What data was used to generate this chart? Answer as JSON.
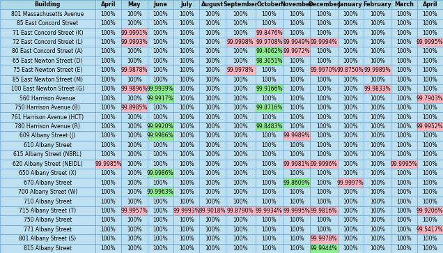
{
  "col_labels": [
    "Building",
    "April",
    "May",
    "June",
    "July",
    "August",
    "September",
    "October",
    "November",
    "December",
    "January",
    "February",
    "March",
    "April"
  ],
  "rows": [
    {
      "building": "801 Massachusetts Avenue",
      "values": [
        "100%",
        "100%",
        "100%",
        "100%",
        "100%",
        "100%",
        "100%",
        "100%",
        "100%",
        "100%",
        "100%",
        "100%",
        "100%"
      ],
      "colors": [
        "",
        "",
        "",
        "",
        "",
        "",
        "",
        "",
        "",
        "",
        "",
        "",
        ""
      ]
    },
    {
      "building": "85 East Concord Street",
      "values": [
        "100%",
        "100%",
        "100%",
        "100%",
        "100%",
        "100%",
        "100%",
        "100%",
        "100%",
        "100%",
        "100%",
        "100%",
        "100%"
      ],
      "colors": [
        "",
        "",
        "",
        "",
        "",
        "",
        "",
        "",
        "",
        "",
        "",
        "",
        ""
      ]
    },
    {
      "building": "71 East Concord Street (K)",
      "values": [
        "100%",
        "99.9991%",
        "100%",
        "100%",
        "100%",
        "100%",
        "99.8476%",
        "100%",
        "100%",
        "100%",
        "100%",
        "100%",
        "100%"
      ],
      "colors": [
        "",
        "pink",
        "",
        "",
        "",
        "",
        "pink",
        "",
        "",
        "",
        "",
        "",
        ""
      ]
    },
    {
      "building": "72 East Concord Street (L)",
      "values": [
        "100%",
        "99.9993%",
        "100%",
        "100%",
        "100%",
        "99.9998%",
        "99.9708%",
        "99.9949%",
        "99.9994%",
        "100%",
        "100%",
        "100%",
        "99.9995%"
      ],
      "colors": [
        "",
        "pink",
        "",
        "",
        "",
        "pink",
        "pink",
        "pink",
        "pink",
        "",
        "",
        "",
        "pink"
      ]
    },
    {
      "building": "80 East Concord Street (A)",
      "values": [
        "100%",
        "100%",
        "100%",
        "100%",
        "100%",
        "100%",
        "99.4062%",
        "99.9972%",
        "100%",
        "100%",
        "100%",
        "100%",
        "100%"
      ],
      "colors": [
        "",
        "",
        "",
        "",
        "",
        "",
        "green",
        "pink",
        "",
        "",
        "",
        "",
        ""
      ]
    },
    {
      "building": "65 East Newton Street (D)",
      "values": [
        "100%",
        "100%",
        "100%",
        "100%",
        "100%",
        "100%",
        "98.3051%",
        "100%",
        "100%",
        "100%",
        "100%",
        "100%",
        "100%"
      ],
      "colors": [
        "",
        "",
        "",
        "",
        "",
        "",
        "green",
        "",
        "",
        "",
        "",
        "",
        ""
      ]
    },
    {
      "building": "75 East Newton Street (E)",
      "values": [
        "100%",
        "99.9878%",
        "100%",
        "100%",
        "100%",
        "99.9978%",
        "100%",
        "100%",
        "99.9970%",
        "99.8750%",
        "99.9989%",
        "100%",
        "100%"
      ],
      "colors": [
        "",
        "pink",
        "",
        "",
        "",
        "pink",
        "",
        "",
        "pink",
        "pink",
        "pink",
        "",
        ""
      ]
    },
    {
      "building": "85 East Newton Street (M)",
      "values": [
        "100%",
        "100%",
        "100%",
        "100%",
        "100%",
        "100%",
        "100%",
        "100%",
        "100%",
        "100%",
        "100%",
        "100%",
        "100%"
      ],
      "colors": [
        "",
        "",
        "",
        "",
        "",
        "",
        "",
        "",
        "",
        "",
        "",
        "",
        ""
      ]
    },
    {
      "building": "100 East Newton Street (G)",
      "values": [
        "100%",
        "99.9896%",
        "99.9939%",
        "100%",
        "100%",
        "100%",
        "99.9166%",
        "100%",
        "100%",
        "100%",
        "99.9833%",
        "100%",
        "100%"
      ],
      "colors": [
        "",
        "pink",
        "green",
        "",
        "",
        "",
        "green",
        "",
        "",
        "",
        "pink",
        "",
        ""
      ]
    },
    {
      "building": "560 Harrison Avenue",
      "values": [
        "100%",
        "100%",
        "99.9917%",
        "100%",
        "100%",
        "100%",
        "100%",
        "100%",
        "100%",
        "100%",
        "100%",
        "100%",
        "99.7903%"
      ],
      "colors": [
        "",
        "",
        "green",
        "",
        "",
        "",
        "",
        "",
        "",
        "",
        "",
        "",
        "pink"
      ]
    },
    {
      "building": "750 Harrison Avenue (B)",
      "values": [
        "100%",
        "99.8985%",
        "100%",
        "100%",
        "100%",
        "100%",
        "99.8716%",
        "100%",
        "100%",
        "100%",
        "100%",
        "100%",
        "100%"
      ],
      "colors": [
        "",
        "pink",
        "",
        "",
        "",
        "",
        "green",
        "",
        "",
        "",
        "",
        "",
        ""
      ]
    },
    {
      "building": "761 Harrison Avenue (HCT)",
      "values": [
        "100%",
        "100%",
        "100%",
        "100%",
        "100%",
        "100%",
        "100%",
        "100%",
        "100%",
        "100%",
        "100%",
        "100%",
        "100%"
      ],
      "colors": [
        "",
        "",
        "",
        "",
        "",
        "",
        "",
        "",
        "",
        "",
        "",
        "",
        ""
      ]
    },
    {
      "building": "780 Harrison Avenue (R)",
      "values": [
        "100%",
        "100%",
        "99.9920%",
        "100%",
        "100%",
        "100%",
        "99.8483%",
        "100%",
        "100%",
        "100%",
        "100%",
        "100%",
        "99.9952%"
      ],
      "colors": [
        "",
        "",
        "green",
        "",
        "",
        "",
        "green",
        "",
        "",
        "",
        "",
        "",
        "pink"
      ]
    },
    {
      "building": "609 Albany Street (J)",
      "values": [
        "100%",
        "100%",
        "99.9986%",
        "100%",
        "100%",
        "100%",
        "100%",
        "99.9989%",
        "100%",
        "100%",
        "100%",
        "100%",
        "100%"
      ],
      "colors": [
        "",
        "",
        "green",
        "",
        "",
        "",
        "",
        "pink",
        "",
        "",
        "",
        "",
        ""
      ]
    },
    {
      "building": "610 Albany Street",
      "values": [
        "100%",
        "100%",
        "100%",
        "100%",
        "100%",
        "100%",
        "100%",
        "100%",
        "100%",
        "100%",
        "100%",
        "100%",
        "100%"
      ],
      "colors": [
        "",
        "",
        "",
        "",
        "",
        "",
        "",
        "",
        "",
        "",
        "",
        "",
        ""
      ]
    },
    {
      "building": "615 Albany Street (NBRL)",
      "values": [
        "100%",
        "100%",
        "100%",
        "100%",
        "100%",
        "100%",
        "100%",
        "100%",
        "100%",
        "100%",
        "100%",
        "100%",
        "100%"
      ],
      "colors": [
        "",
        "",
        "",
        "",
        "",
        "",
        "",
        "",
        "",
        "",
        "",
        "",
        ""
      ]
    },
    {
      "building": "620 Albany Street (NEIDL)",
      "values": [
        "99.9985%",
        "100%",
        "100%",
        "100%",
        "100%",
        "100%",
        "100%",
        "99.9981%",
        "99.9996%",
        "100%",
        "100%",
        "99.9995%",
        "100%"
      ],
      "colors": [
        "pink",
        "",
        "",
        "",
        "",
        "",
        "",
        "pink",
        "pink",
        "",
        "",
        "pink",
        ""
      ]
    },
    {
      "building": "650 Albany Street (X)",
      "values": [
        "100%",
        "100%",
        "99.9986%",
        "100%",
        "100%",
        "100%",
        "100%",
        "100%",
        "100%",
        "100%",
        "100%",
        "100%",
        "100%"
      ],
      "colors": [
        "",
        "",
        "green",
        "",
        "",
        "",
        "",
        "",
        "",
        "",
        "",
        "",
        ""
      ]
    },
    {
      "building": "670 Albany Street",
      "values": [
        "100%",
        "100%",
        "100%",
        "100%",
        "100%",
        "100%",
        "100%",
        "99.8609%",
        "100%",
        "99.9997%",
        "100%",
        "100%",
        "100%"
      ],
      "colors": [
        "",
        "",
        "",
        "",
        "",
        "",
        "",
        "green",
        "",
        "pink",
        "",
        "",
        ""
      ]
    },
    {
      "building": "700 Albany Street (W)",
      "values": [
        "100%",
        "100%",
        "99.9963%",
        "100%",
        "100%",
        "100%",
        "100%",
        "100%",
        "100%",
        "100%",
        "100%",
        "100%",
        "100%"
      ],
      "colors": [
        "",
        "",
        "green",
        "",
        "",
        "",
        "",
        "",
        "",
        "",
        "",
        "",
        ""
      ]
    },
    {
      "building": "710 Albany Street",
      "values": [
        "100%",
        "100%",
        "100%",
        "100%",
        "100%",
        "100%",
        "100%",
        "100%",
        "100%",
        "100%",
        "100%",
        "100%",
        "100%"
      ],
      "colors": [
        "",
        "",
        "",
        "",
        "",
        "",
        "",
        "",
        "",
        "",
        "",
        "",
        ""
      ]
    },
    {
      "building": "715 Albany Street (T)",
      "values": [
        "100%",
        "99.9957%",
        "100%",
        "99.9993%",
        "99.9018%",
        "99.8790%",
        "99.9934%",
        "99.9995%",
        "99.9816%",
        "100%",
        "100%",
        "100%",
        "99.9206%"
      ],
      "colors": [
        "",
        "pink",
        "",
        "pink",
        "pink",
        "pink",
        "pink",
        "pink",
        "pink",
        "",
        "",
        "",
        "pink"
      ]
    },
    {
      "building": "750 Albany Street",
      "values": [
        "100%",
        "100%",
        "100%",
        "100%",
        "100%",
        "100%",
        "100%",
        "100%",
        "100%",
        "100%",
        "100%",
        "100%",
        "100%"
      ],
      "colors": [
        "",
        "",
        "",
        "",
        "",
        "",
        "",
        "",
        "",
        "",
        "",
        "",
        ""
      ]
    },
    {
      "building": "771 Albany Street",
      "values": [
        "100%",
        "100%",
        "100%",
        "100%",
        "100%",
        "100%",
        "100%",
        "100%",
        "100%",
        "100%",
        "100%",
        "100%",
        "99.5417%"
      ],
      "colors": [
        "",
        "",
        "",
        "",
        "",
        "",
        "",
        "",
        "",
        "",
        "",
        "",
        "pink"
      ]
    },
    {
      "building": "801 Albany Street (S)",
      "values": [
        "100%",
        "100%",
        "100%",
        "100%",
        "100%",
        "100%",
        "100%",
        "100%",
        "99.9978%",
        "100%",
        "100%",
        "100%",
        "100%"
      ],
      "colors": [
        "",
        "",
        "",
        "",
        "",
        "",
        "",
        "",
        "pink",
        "",
        "",
        "",
        ""
      ]
    },
    {
      "building": "815 Albany Street",
      "values": [
        "100%",
        "100%",
        "100%",
        "100%",
        "100%",
        "100%",
        "100%",
        "100%",
        "99.9944%",
        "100%",
        "100%",
        "100%",
        "100%"
      ],
      "colors": [
        "",
        "",
        "",
        "",
        "",
        "",
        "",
        "",
        "green",
        "",
        "",
        "",
        ""
      ]
    }
  ],
  "header_bg": "#add8e6",
  "cell_bg_default": "#bde0f0",
  "cell_highlight_pink": "#ffb6c1",
  "cell_highlight_green": "#90ee90",
  "border_color": "#5b9bd5",
  "header_font_size": 5.8,
  "cell_font_size": 5.5,
  "building_font_size": 5.5
}
